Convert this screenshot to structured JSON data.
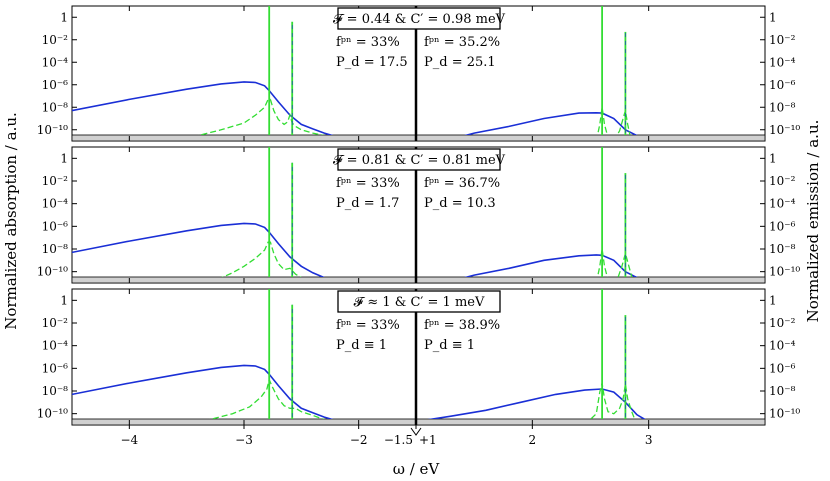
{
  "chart_data": {
    "type": "line",
    "ylabel_left": "Normalized absorption / a.u.",
    "ylabel_right": "Normalized emission / a.u.",
    "xlabel": "ω / eV",
    "yscale": "log",
    "ylim": [
      1e-11,
      10
    ],
    "xlim_absorption": [
      -4.5,
      -1.5
    ],
    "xlim_emission": [
      1,
      4
    ],
    "x_ticks_absorption": [
      {
        "value": -4,
        "label": "−4"
      },
      {
        "value": -3,
        "label": "−3"
      },
      {
        "value": -2,
        "label": "−2"
      },
      {
        "value": -1.5,
        "label": "−1.5"
      }
    ],
    "x_ticks_emission": [
      {
        "value": 1,
        "label": "+1"
      },
      {
        "value": 2,
        "label": "2"
      },
      {
        "value": 3,
        "label": "3"
      }
    ],
    "y_ticks": [
      {
        "value": 1,
        "label": "1"
      },
      {
        "value": 0.01,
        "label": "10⁻²"
      },
      {
        "value": 0.0001,
        "label": "10⁻⁴"
      },
      {
        "value": 1e-06,
        "label": "10⁻⁶"
      },
      {
        "value": 1e-08,
        "label": "10⁻⁸"
      },
      {
        "value": 1e-10,
        "label": "10⁻¹⁰"
      }
    ],
    "colors": {
      "solid": "#1a2fd6",
      "dashed": "#33dd33",
      "axis": "#000000",
      "band": "#d0d0d0"
    },
    "panels": [
      {
        "title": "𝓕 = 0.44 & C′ = 0.98 meV",
        "abs_text": [
          "fᵖⁿ = 33%",
          "P_d = 17.5"
        ],
        "emi_text": [
          "fᵖⁿ = 35.2%",
          "P_d = 25.1"
        ],
        "series": [
          {
            "role": "absorption-solid",
            "x": [
              -4.5,
              -4.0,
              -3.5,
              -3.2,
              -3.0,
              -2.9,
              -2.82,
              -2.78,
              -2.7,
              -2.6,
              -2.5,
              -2.4,
              -2.3,
              -2.2,
              -2.1,
              -2.0,
              -1.9
            ],
            "y": [
              5e-09,
              5e-08,
              4e-07,
              1.2e-06,
              1.8e-06,
              1.6e-06,
              8e-07,
              3e-07,
              3e-08,
              2e-09,
              3e-10,
              1.2e-10,
              5e-11,
              2.5e-11,
              1.5e-11,
              1.1e-11,
              1e-11
            ]
          },
          {
            "role": "absorption-dashed",
            "x": [
              -3.6,
              -3.4,
              -3.2,
              -3.0,
              -2.9,
              -2.82,
              -2.79,
              -2.77,
              -2.74,
              -2.7,
              -2.65,
              -2.62,
              -2.6,
              -2.58,
              -2.55,
              -2.5,
              -2.4,
              -2.3,
              -2.2,
              -2.1,
              -2.0
            ],
            "y": [
              1e-11,
              3e-11,
              1e-10,
              4e-10,
              2e-09,
              1e-08,
              5e-08,
              5e-08,
              5e-09,
              8e-10,
              3e-10,
              5e-10,
              2e-09,
              4e-10,
              2e-10,
              1e-10,
              5e-11,
              3e-11,
              2e-11,
              1.3e-11,
              1e-11
            ]
          },
          {
            "role": "absorption-spike",
            "x": [
              -2.78,
              -2.78
            ],
            "y": [
              1e-11,
              10
            ]
          },
          {
            "role": "absorption-spike",
            "x": [
              -2.58,
              -2.58
            ],
            "y": [
              1e-11,
              0.4
            ]
          },
          {
            "role": "emission-solid",
            "x": [
              1.25,
              1.5,
              1.8,
              2.1,
              2.4,
              2.55,
              2.6,
              2.7,
              2.8,
              2.9,
              2.97
            ],
            "y": [
              1e-11,
              5e-11,
              2e-10,
              1e-09,
              3e-09,
              3.2e-09,
              3e-09,
              1e-09,
              1e-10,
              3e-11,
              1e-11
            ]
          },
          {
            "role": "emission-dashed",
            "x": [
              2.55,
              2.58,
              2.6,
              2.62,
              2.65,
              2.7,
              2.75,
              2.78,
              2.8,
              2.82,
              2.85
            ],
            "y": [
              1e-11,
              3e-10,
              1e-08,
              3e-10,
              2e-11,
              1e-11,
              8e-11,
              1e-09,
              5e-09,
              3e-10,
              1e-11
            ]
          },
          {
            "role": "emission-spike",
            "x": [
              2.6,
              2.6
            ],
            "y": [
              1e-11,
              10
            ]
          },
          {
            "role": "emission-spike",
            "x": [
              2.8,
              2.8
            ],
            "y": [
              1e-11,
              0.05
            ]
          }
        ]
      },
      {
        "title": "𝓕 = 0.81 & C′ = 0.81 meV",
        "abs_text": [
          "fᵖⁿ = 33%",
          "P_d = 1.7"
        ],
        "emi_text": [
          "fᵖⁿ = 36.7%",
          "P_d = 10.3"
        ],
        "series": [
          {
            "role": "absorption-solid",
            "x": [
              -4.5,
              -4.0,
              -3.5,
              -3.2,
              -3.0,
              -2.9,
              -2.82,
              -2.78,
              -2.7,
              -2.6,
              -2.5,
              -2.4,
              -2.3,
              -2.2,
              -2.1
            ],
            "y": [
              5e-09,
              5e-08,
              4e-07,
              1.2e-06,
              1.8e-06,
              1.6e-06,
              8e-07,
              3e-07,
              3e-08,
              2e-09,
              3e-10,
              8e-11,
              3e-11,
              1.5e-11,
              1e-11
            ]
          },
          {
            "role": "absorption-dashed",
            "x": [
              -3.3,
              -3.1,
              -3.0,
              -2.9,
              -2.82,
              -2.79,
              -2.77,
              -2.74,
              -2.7,
              -2.65,
              -2.6,
              -2.55,
              -2.5,
              -2.4,
              -2.3
            ],
            "y": [
              1e-11,
              8e-11,
              3e-10,
              1.5e-09,
              8e-09,
              4e-08,
              4e-08,
              4e-09,
              5e-10,
              1.5e-10,
              2e-10,
              6e-11,
              3e-11,
              1.5e-11,
              1e-11
            ]
          },
          {
            "role": "absorption-spike",
            "x": [
              -2.78,
              -2.78
            ],
            "y": [
              1e-11,
              10
            ]
          },
          {
            "role": "absorption-spike",
            "x": [
              -2.58,
              -2.58
            ],
            "y": [
              1e-11,
              0.4
            ]
          },
          {
            "role": "emission-solid",
            "x": [
              1.25,
              1.5,
              1.8,
              2.1,
              2.4,
              2.55,
              2.6,
              2.7,
              2.8,
              2.9,
              2.98
            ],
            "y": [
              1e-11,
              5e-11,
              2e-10,
              1e-09,
              2.5e-09,
              3e-09,
              2.8e-09,
              1e-09,
              1e-10,
              3e-11,
              1e-11
            ]
          },
          {
            "role": "emission-dashed",
            "x": [
              2.55,
              2.58,
              2.6,
              2.62,
              2.65,
              2.72,
              2.77,
              2.8,
              2.83,
              2.87
            ],
            "y": [
              1e-11,
              3e-10,
              1e-08,
              3e-10,
              2e-11,
              1e-11,
              3e-10,
              4e-09,
              3e-10,
              1e-11
            ]
          },
          {
            "role": "emission-spike",
            "x": [
              2.6,
              2.6
            ],
            "y": [
              1e-11,
              10
            ]
          },
          {
            "role": "emission-spike",
            "x": [
              2.8,
              2.8
            ],
            "y": [
              1e-11,
              0.05
            ]
          }
        ]
      },
      {
        "title": "𝓕 ≈ 1 & C′ = 1 meV",
        "abs_text": [
          "fᵖⁿ = 33%",
          "P_d ≡ 1"
        ],
        "emi_text": [
          "fᵖⁿ = 38.9%",
          "P_d ≡ 1"
        ],
        "series": [
          {
            "role": "absorption-solid",
            "x": [
              -4.5,
              -4.0,
              -3.5,
              -3.2,
              -3.0,
              -2.9,
              -2.82,
              -2.78,
              -2.7,
              -2.6,
              -2.5,
              -2.4,
              -2.3,
              -2.2,
              -2.1,
              -2.0,
              -1.9,
              -1.8
            ],
            "y": [
              5e-09,
              5e-08,
              4e-07,
              1.2e-06,
              1.8e-06,
              1.6e-06,
              8e-07,
              3e-07,
              3e-08,
              2e-09,
              3e-10,
              1.2e-10,
              5e-11,
              2.5e-11,
              1.6e-11,
              1.2e-11,
              1.05e-11,
              1e-11
            ]
          },
          {
            "role": "absorption-dashed",
            "x": [
              -3.5,
              -3.3,
              -3.1,
              -2.95,
              -2.85,
              -2.8,
              -2.78,
              -2.75,
              -2.7,
              -2.65,
              -2.6,
              -2.55,
              -2.5,
              -2.4,
              -2.3,
              -2.2,
              -2.1,
              -2.0
            ],
            "y": [
              1e-11,
              3e-11,
              1e-10,
              4e-10,
              3e-09,
              1.5e-08,
              1e-07,
              2e-08,
              2e-09,
              5e-10,
              3e-10,
              3e-10,
              1.5e-10,
              7e-11,
              3e-11,
              2e-11,
              1.3e-11,
              1e-11
            ]
          },
          {
            "role": "absorption-spike",
            "x": [
              -2.78,
              -2.78
            ],
            "y": [
              1e-11,
              10
            ]
          },
          {
            "role": "absorption-spike",
            "x": [
              -2.58,
              -2.58
            ],
            "y": [
              1e-11,
              0.4
            ]
          },
          {
            "role": "emission-solid",
            "x": [
              1.0,
              1.3,
              1.6,
              1.9,
              2.2,
              2.45,
              2.6,
              2.7,
              2.8,
              2.9,
              3.0,
              3.05
            ],
            "y": [
              2e-11,
              6e-11,
              2e-10,
              1e-09,
              5e-09,
              1.2e-08,
              1.5e-08,
              8e-09,
              1e-09,
              8e-11,
              2e-11,
              1e-11
            ]
          },
          {
            "role": "emission-dashed",
            "x": [
              2.45,
              2.55,
              2.58,
              2.6,
              2.62,
              2.65,
              2.7,
              2.75,
              2.78,
              2.8,
              2.82,
              2.85,
              2.9
            ],
            "y": [
              1e-11,
              1e-10,
              8e-09,
              5e-08,
              2e-09,
              1.5e-10,
              1e-10,
              3e-10,
              2e-09,
              4e-08,
              2e-09,
              2e-10,
              1e-11
            ]
          },
          {
            "role": "emission-spike",
            "x": [
              2.6,
              2.6
            ],
            "y": [
              1e-11,
              10
            ]
          },
          {
            "role": "emission-spike",
            "x": [
              2.8,
              2.8
            ],
            "y": [
              1e-11,
              0.05
            ]
          }
        ]
      }
    ]
  }
}
